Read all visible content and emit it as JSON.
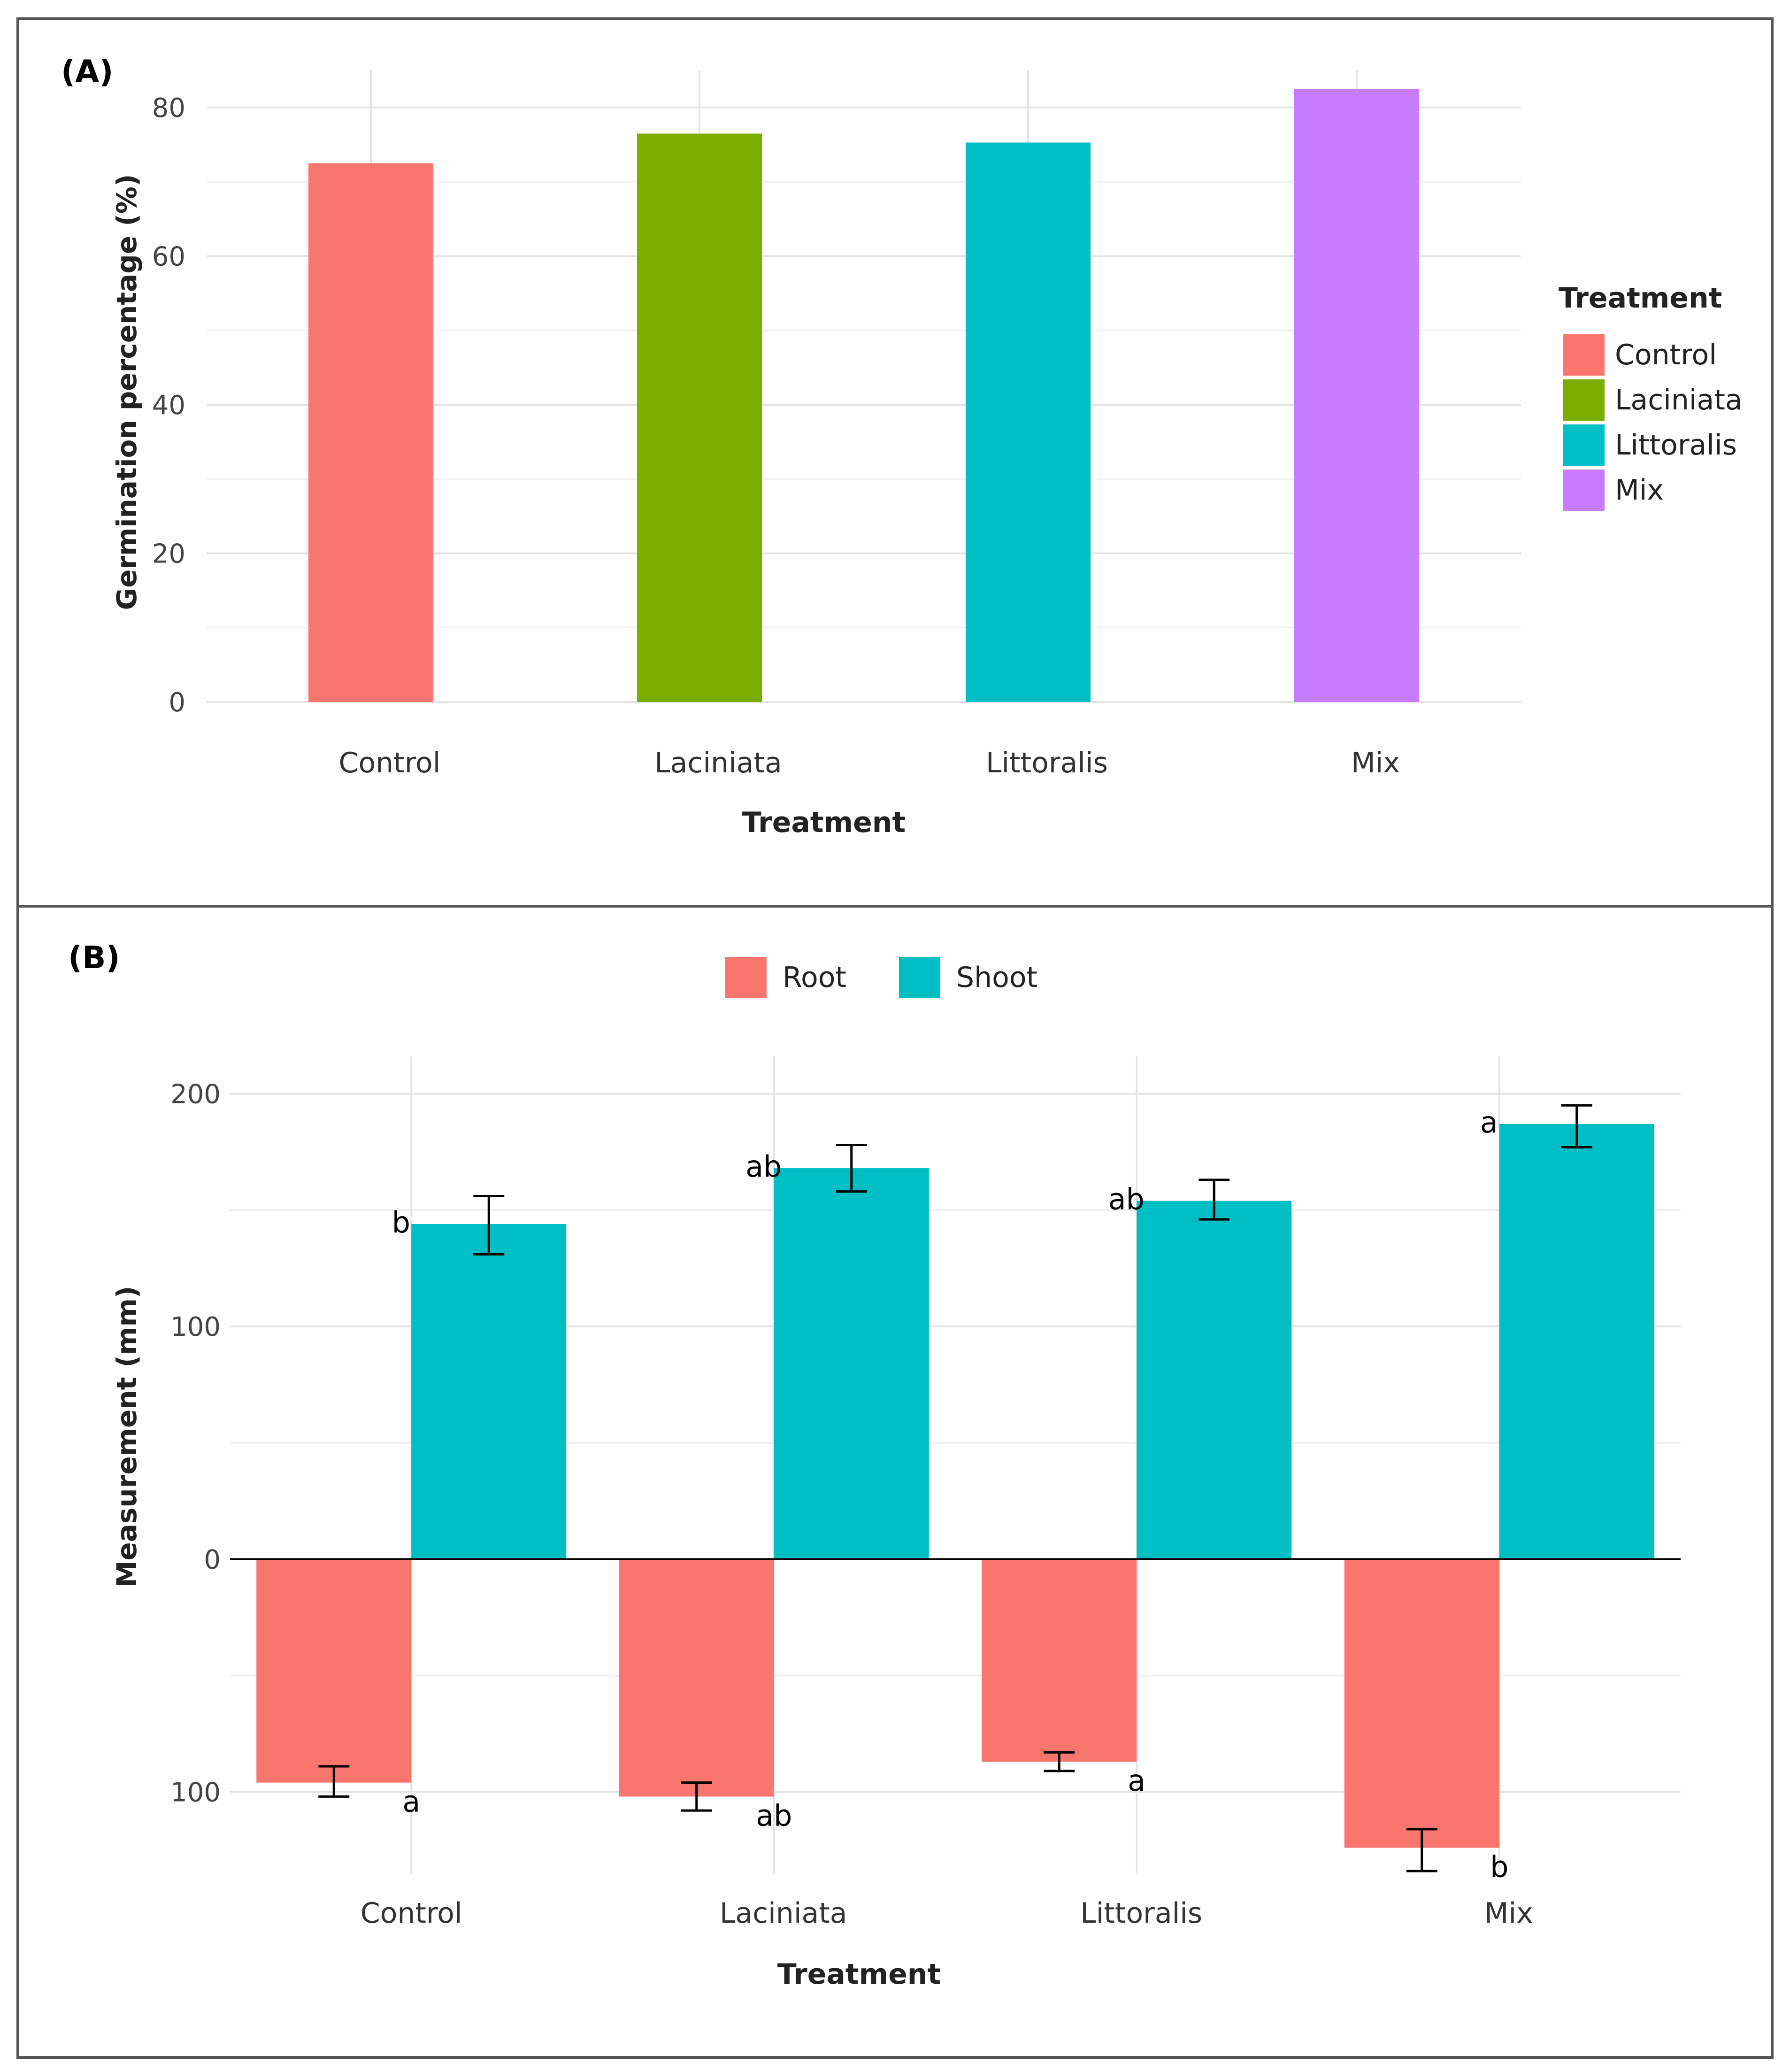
{
  "panels": {
    "a": {
      "label": "(A)"
    },
    "b": {
      "label": "(B)"
    }
  },
  "chart_data": [
    {
      "type": "bar",
      "title": "",
      "categories": [
        "Control",
        "Laciniata",
        "Littoralis",
        "Mix"
      ],
      "values": [
        72.5,
        76.5,
        75.3,
        82.5
      ],
      "colors": [
        "#F8766D",
        "#7CAE00",
        "#00BFC4",
        "#C77CFF"
      ],
      "xlabel": "Treatment",
      "ylabel": "Germination percentage (%)",
      "ylim": [
        0,
        85
      ],
      "yticks": [
        0,
        20,
        40,
        60,
        80
      ],
      "grid": true,
      "legend": {
        "title": "Treatment",
        "placement": "right",
        "entries": [
          "Control",
          "Laciniata",
          "Littoralis",
          "Mix"
        ]
      }
    },
    {
      "type": "bar",
      "title": "",
      "categories": [
        "Control",
        "Laciniata",
        "Littoralis",
        "Mix"
      ],
      "series": [
        {
          "name": "Root",
          "color": "#F8766D",
          "values": [
            -96,
            -102,
            -87,
            -124
          ],
          "err_low": [
            -102,
            -108,
            -91,
            -134
          ],
          "err_high": [
            -89,
            -96,
            -83,
            -116
          ],
          "letters": [
            "a",
            "ab",
            "a",
            "b"
          ]
        },
        {
          "name": "Shoot",
          "color": "#00BFC4",
          "values": [
            144,
            168,
            154,
            187
          ],
          "err_low": [
            131,
            158,
            146,
            177
          ],
          "err_high": [
            156,
            178,
            163,
            195
          ],
          "letters": [
            "b",
            "ab",
            "ab",
            "a"
          ]
        }
      ],
      "xlabel": "Treatment",
      "ylabel": "Measurement (mm)",
      "ylim": [
        -135,
        213
      ],
      "yticks": [
        -100,
        0,
        100,
        200
      ],
      "ytick_labels": [
        "100",
        "0",
        "100",
        "200"
      ],
      "grid": true,
      "legend": {
        "placement": "top",
        "entries": [
          "Root",
          "Shoot"
        ]
      }
    }
  ]
}
